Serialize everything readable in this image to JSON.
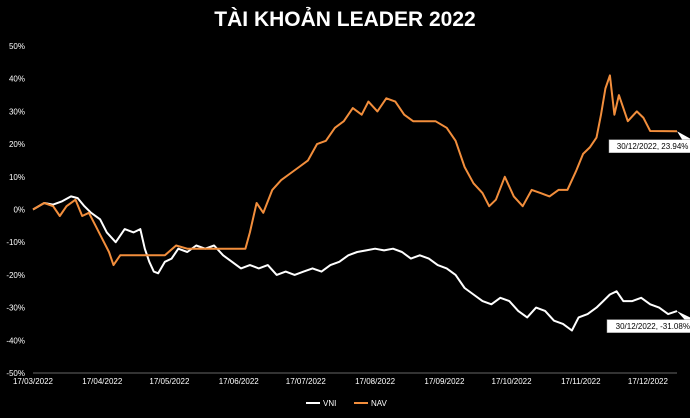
{
  "chart_data": {
    "type": "line",
    "title": "TÀI KHOẢN LEADER 2022",
    "xlabel": "",
    "ylabel": "",
    "ylim": [
      -50,
      50
    ],
    "y_ticks": [
      "50%",
      "40%",
      "30%",
      "20%",
      "10%",
      "0%",
      "-10%",
      "-20%",
      "-30%",
      "-40%",
      "-50%"
    ],
    "x_ticks": [
      "17/03/2022",
      "17/04/2022",
      "17/05/2022",
      "17/06/2022",
      "17/07/2022",
      "17/08/2022",
      "17/09/2022",
      "17/10/2022",
      "17/11/2022",
      "17/12/2022"
    ],
    "x_start": "2022-03-17",
    "x_end": "2022-12-30",
    "grid": false,
    "legend": "bottom",
    "series": [
      {
        "name": "VNI",
        "color": "#ffffff",
        "points": [
          [
            "2022-03-17",
            0
          ],
          [
            "2022-03-22",
            2
          ],
          [
            "2022-03-26",
            1.5
          ],
          [
            "2022-03-30",
            2.5
          ],
          [
            "2022-04-03",
            4
          ],
          [
            "2022-04-06",
            3.5
          ],
          [
            "2022-04-09",
            1
          ],
          [
            "2022-04-12",
            -1
          ],
          [
            "2022-04-16",
            -3
          ],
          [
            "2022-04-19",
            -7
          ],
          [
            "2022-04-23",
            -10
          ],
          [
            "2022-04-27",
            -6
          ],
          [
            "2022-05-01",
            -7
          ],
          [
            "2022-05-04",
            -6
          ],
          [
            "2022-05-06",
            -12
          ],
          [
            "2022-05-08",
            -16
          ],
          [
            "2022-05-10",
            -19
          ],
          [
            "2022-05-12",
            -19.5
          ],
          [
            "2022-05-15",
            -16
          ],
          [
            "2022-05-18",
            -15
          ],
          [
            "2022-05-21",
            -12
          ],
          [
            "2022-05-25",
            -13
          ],
          [
            "2022-05-29",
            -11
          ],
          [
            "2022-06-02",
            -12
          ],
          [
            "2022-06-06",
            -11
          ],
          [
            "2022-06-10",
            -14
          ],
          [
            "2022-06-14",
            -16
          ],
          [
            "2022-06-18",
            -18
          ],
          [
            "2022-06-22",
            -17
          ],
          [
            "2022-06-26",
            -18
          ],
          [
            "2022-06-30",
            -17
          ],
          [
            "2022-07-04",
            -20
          ],
          [
            "2022-07-08",
            -19
          ],
          [
            "2022-07-12",
            -20
          ],
          [
            "2022-07-16",
            -19
          ],
          [
            "2022-07-20",
            -18
          ],
          [
            "2022-07-24",
            -19
          ],
          [
            "2022-07-28",
            -17
          ],
          [
            "2022-08-01",
            -16
          ],
          [
            "2022-08-05",
            -14
          ],
          [
            "2022-08-09",
            -13
          ],
          [
            "2022-08-13",
            -12.5
          ],
          [
            "2022-08-17",
            -12
          ],
          [
            "2022-08-21",
            -12.5
          ],
          [
            "2022-08-25",
            -12
          ],
          [
            "2022-08-29",
            -13
          ],
          [
            "2022-09-02",
            -15
          ],
          [
            "2022-09-06",
            -14
          ],
          [
            "2022-09-10",
            -15
          ],
          [
            "2022-09-14",
            -17
          ],
          [
            "2022-09-18",
            -18
          ],
          [
            "2022-09-22",
            -20
          ],
          [
            "2022-09-26",
            -24
          ],
          [
            "2022-09-30",
            -26
          ],
          [
            "2022-10-04",
            -28
          ],
          [
            "2022-10-08",
            -29
          ],
          [
            "2022-10-12",
            -27
          ],
          [
            "2022-10-16",
            -28
          ],
          [
            "2022-10-20",
            -31
          ],
          [
            "2022-10-24",
            -33
          ],
          [
            "2022-10-28",
            -30
          ],
          [
            "2022-11-01",
            -31
          ],
          [
            "2022-11-05",
            -34
          ],
          [
            "2022-11-09",
            -35
          ],
          [
            "2022-11-13",
            -37
          ],
          [
            "2022-11-16",
            -33
          ],
          [
            "2022-11-20",
            -32
          ],
          [
            "2022-11-24",
            -30
          ],
          [
            "2022-11-27",
            -28
          ],
          [
            "2022-11-30",
            -26
          ],
          [
            "2022-12-03",
            -25
          ],
          [
            "2022-12-06",
            -28
          ],
          [
            "2022-12-10",
            -28
          ],
          [
            "2022-12-14",
            -27
          ],
          [
            "2022-12-18",
            -29
          ],
          [
            "2022-12-22",
            -30
          ],
          [
            "2022-12-26",
            -32
          ],
          [
            "2022-12-30",
            -31.08
          ]
        ]
      },
      {
        "name": "NAV",
        "color": "#f28e3c",
        "points": [
          [
            "2022-03-17",
            0
          ],
          [
            "2022-03-22",
            2
          ],
          [
            "2022-03-26",
            1
          ],
          [
            "2022-03-29",
            -2
          ],
          [
            "2022-04-01",
            1
          ],
          [
            "2022-04-05",
            3
          ],
          [
            "2022-04-08",
            -2
          ],
          [
            "2022-04-11",
            -1
          ],
          [
            "2022-04-14",
            -5
          ],
          [
            "2022-04-17",
            -9
          ],
          [
            "2022-04-20",
            -13
          ],
          [
            "2022-04-22",
            -17
          ],
          [
            "2022-04-25",
            -14
          ],
          [
            "2022-05-05",
            -14
          ],
          [
            "2022-05-15",
            -14
          ],
          [
            "2022-05-20",
            -11
          ],
          [
            "2022-05-25",
            -12
          ],
          [
            "2022-06-15",
            -12
          ],
          [
            "2022-06-20",
            -12
          ],
          [
            "2022-06-22",
            -7
          ],
          [
            "2022-06-25",
            2
          ],
          [
            "2022-06-28",
            -1
          ],
          [
            "2022-07-02",
            6
          ],
          [
            "2022-07-06",
            9
          ],
          [
            "2022-07-10",
            11
          ],
          [
            "2022-07-14",
            13
          ],
          [
            "2022-07-18",
            15
          ],
          [
            "2022-07-22",
            20
          ],
          [
            "2022-07-26",
            21
          ],
          [
            "2022-07-30",
            25
          ],
          [
            "2022-08-03",
            27
          ],
          [
            "2022-08-07",
            31
          ],
          [
            "2022-08-11",
            29
          ],
          [
            "2022-08-14",
            33
          ],
          [
            "2022-08-18",
            30
          ],
          [
            "2022-08-22",
            34
          ],
          [
            "2022-08-26",
            33
          ],
          [
            "2022-08-30",
            29
          ],
          [
            "2022-09-03",
            27
          ],
          [
            "2022-09-08",
            27
          ],
          [
            "2022-09-13",
            27
          ],
          [
            "2022-09-18",
            25
          ],
          [
            "2022-09-22",
            21
          ],
          [
            "2022-09-26",
            13
          ],
          [
            "2022-09-30",
            8
          ],
          [
            "2022-10-04",
            5
          ],
          [
            "2022-10-07",
            1
          ],
          [
            "2022-10-10",
            3
          ],
          [
            "2022-10-14",
            10
          ],
          [
            "2022-10-18",
            4
          ],
          [
            "2022-10-22",
            1
          ],
          [
            "2022-10-26",
            6
          ],
          [
            "2022-10-30",
            5
          ],
          [
            "2022-11-03",
            4
          ],
          [
            "2022-11-07",
            6
          ],
          [
            "2022-11-11",
            6
          ],
          [
            "2022-11-15",
            12
          ],
          [
            "2022-11-18",
            17
          ],
          [
            "2022-11-21",
            19
          ],
          [
            "2022-11-24",
            22
          ],
          [
            "2022-11-26",
            29
          ],
          [
            "2022-11-28",
            37
          ],
          [
            "2022-11-30",
            41
          ],
          [
            "2022-12-02",
            29
          ],
          [
            "2022-12-04",
            35
          ],
          [
            "2022-12-08",
            27
          ],
          [
            "2022-12-12",
            30
          ],
          [
            "2022-12-15",
            28
          ],
          [
            "2022-12-18",
            24
          ],
          [
            "2022-12-30",
            23.94
          ]
        ]
      }
    ],
    "annotations": [
      {
        "series": "NAV",
        "x": "2022-12-30",
        "y": 23.94,
        "text": "30/12/2022, 23.94%"
      },
      {
        "series": "VNI",
        "x": "2022-12-30",
        "y": -31.08,
        "text": "30/12/2022, -31.08%"
      }
    ]
  }
}
